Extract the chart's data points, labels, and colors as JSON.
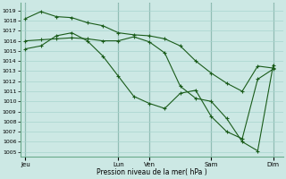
{
  "background_color": "#cce8e4",
  "grid_color": "#a8d4ce",
  "line_color": "#1a5c1a",
  "xlabel": "Pression niveau de la mer( hPa )",
  "ylim": [
    1004.5,
    1019.8
  ],
  "yticks": [
    1005,
    1006,
    1007,
    1008,
    1009,
    1010,
    1011,
    1012,
    1013,
    1014,
    1015,
    1016,
    1017,
    1018,
    1019
  ],
  "xtick_labels": [
    "Jeu",
    "Lun",
    "Ven",
    "Sam",
    "Dim"
  ],
  "xtick_positions": [
    0,
    36,
    48,
    72,
    96
  ],
  "xlim": [
    -2,
    100
  ],
  "vlines": [
    0,
    36,
    48,
    72,
    96
  ],
  "series1": {
    "x": [
      0,
      6,
      12,
      18,
      24,
      30,
      36,
      42,
      48,
      54,
      60,
      66,
      72,
      78,
      84,
      90,
      96
    ],
    "y": [
      1018.2,
      1018.9,
      1018.4,
      1018.3,
      1017.8,
      1017.5,
      1016.8,
      1016.6,
      1016.5,
      1016.2,
      1015.5,
      1014.0,
      1012.8,
      1011.8,
      1011.0,
      1013.5,
      1013.3
    ]
  },
  "series2": {
    "x": [
      0,
      6,
      12,
      18,
      24,
      30,
      36,
      42,
      48,
      54,
      60,
      66,
      72,
      78,
      84,
      90,
      96
    ],
    "y": [
      1016.0,
      1016.1,
      1016.2,
      1016.3,
      1016.2,
      1016.0,
      1016.0,
      1016.4,
      1015.9,
      1014.8,
      1011.5,
      1010.3,
      1010.0,
      1008.3,
      1006.0,
      1005.1,
      1013.6
    ]
  },
  "series3": {
    "x": [
      0,
      6,
      12,
      18,
      24,
      30,
      36,
      42,
      48,
      54,
      60,
      66,
      72,
      78,
      84,
      90,
      96
    ],
    "y": [
      1015.2,
      1015.5,
      1016.5,
      1016.8,
      1016.0,
      1014.5,
      1012.5,
      1010.5,
      1009.8,
      1009.3,
      1010.8,
      1011.1,
      1008.5,
      1007.0,
      1006.3,
      1012.2,
      1013.2
    ]
  }
}
